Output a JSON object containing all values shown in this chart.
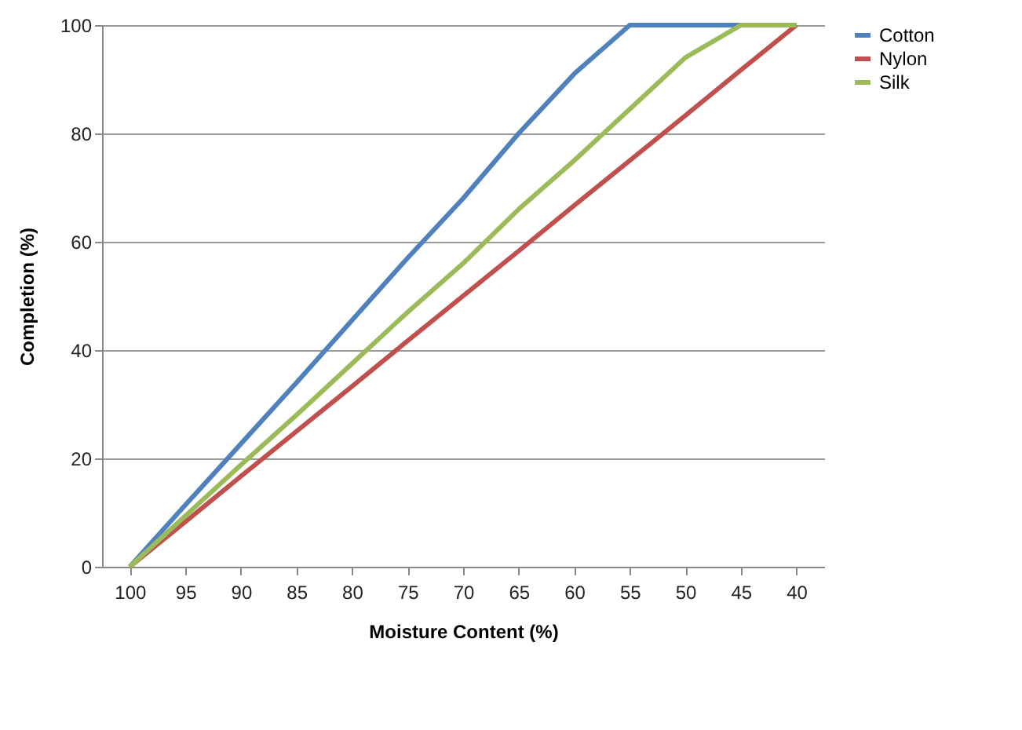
{
  "chart_data": {
    "type": "line",
    "xlabel": "Moisture Content (%)",
    "ylabel": "Completion (%)",
    "categories": [
      "100",
      "95",
      "90",
      "85",
      "80",
      "75",
      "70",
      "65",
      "60",
      "55",
      "50",
      "45",
      "40"
    ],
    "series": [
      {
        "name": "Cotton",
        "color": "#4f81bd",
        "values": [
          0,
          11.4,
          22.7,
          34,
          45.5,
          57,
          68,
          80,
          91,
          100,
          100,
          100,
          100
        ]
      },
      {
        "name": "Nylon",
        "color": "#c0504d",
        "values": [
          0,
          8.3,
          16.7,
          25,
          33.3,
          41.7,
          50,
          58.3,
          66.7,
          75,
          83.3,
          91.7,
          100
        ]
      },
      {
        "name": "Silk",
        "color": "#9bbb59",
        "values": [
          0,
          9.4,
          18.8,
          28,
          37.5,
          47,
          56,
          66,
          75,
          84.5,
          94,
          100,
          100
        ]
      }
    ],
    "ylim": [
      0,
      100
    ],
    "yticks": [
      0,
      20,
      40,
      60,
      80,
      100
    ],
    "grid": "y",
    "legend": "right",
    "marker": "none",
    "line_style": "solid"
  }
}
